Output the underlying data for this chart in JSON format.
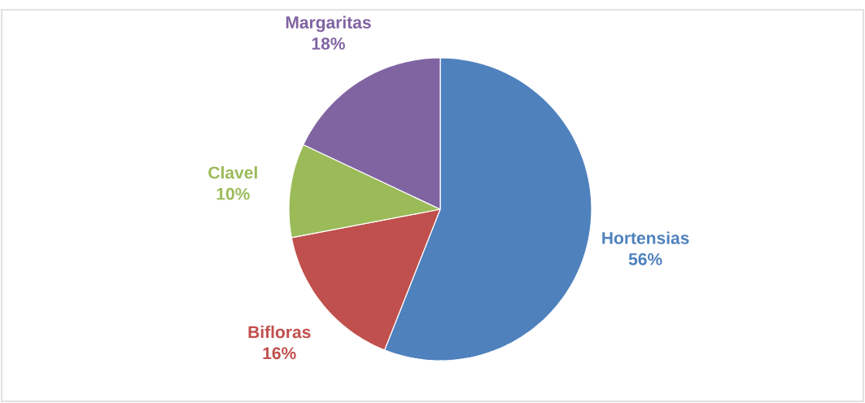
{
  "chart_data": {
    "type": "pie",
    "categories": [
      "Hortensias",
      "Bifloras",
      "Clavel",
      "Margaritas"
    ],
    "values": [
      56,
      16,
      10,
      18
    ],
    "value_labels": [
      "56%",
      "16%",
      "10%",
      "18%"
    ],
    "colors": [
      "#4f81bd",
      "#c0504d",
      "#9bbb59",
      "#8064a2"
    ]
  }
}
